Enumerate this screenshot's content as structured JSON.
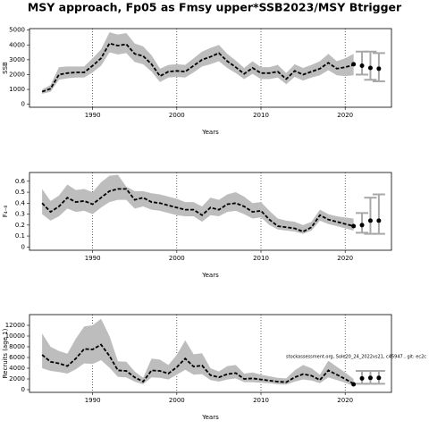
{
  "title": "MSY approach, Fp05 as Fmsy upper*SSB2023/MSY Btrigger",
  "chart_data": [
    {
      "type": "line",
      "ylabel": "SSB",
      "xlabel": "Years",
      "x": [
        1984,
        1985,
        1986,
        1987,
        1988,
        1989,
        1990,
        1991,
        1992,
        1993,
        1994,
        1995,
        1996,
        1997,
        1998,
        1999,
        2000,
        2001,
        2002,
        2003,
        2004,
        2005,
        2006,
        2007,
        2008,
        2009,
        2010,
        2011,
        2012,
        2013,
        2014,
        2015,
        2016,
        2017,
        2018,
        2019,
        2020,
        2021
      ],
      "values": [
        850,
        1050,
        2000,
        2100,
        2150,
        2150,
        2600,
        3100,
        4100,
        3950,
        4050,
        3400,
        3250,
        2700,
        1900,
        2200,
        2250,
        2200,
        2600,
        3000,
        3200,
        3450,
        2900,
        2500,
        2050,
        2450,
        2100,
        2100,
        2200,
        1700,
        2250,
        2000,
        2200,
        2400,
        2800,
        2400,
        2500,
        2650
      ],
      "upper": [
        1000,
        1300,
        2500,
        2550,
        2550,
        2550,
        3100,
        3700,
        4850,
        4700,
        4800,
        4100,
        3900,
        3300,
        2400,
        2650,
        2700,
        2650,
        3100,
        3550,
        3800,
        4000,
        3400,
        2950,
        2450,
        2900,
        2500,
        2500,
        2650,
        2100,
        2700,
        2450,
        2650,
        2900,
        3400,
        2900,
        3100,
        3400
      ],
      "lower": [
        700,
        850,
        1650,
        1750,
        1800,
        1800,
        2150,
        2600,
        3500,
        3350,
        3450,
        2850,
        2700,
        2200,
        1500,
        1800,
        1850,
        1800,
        2150,
        2550,
        2700,
        2900,
        2450,
        2100,
        1700,
        2050,
        1700,
        1700,
        1800,
        1350,
        1850,
        1600,
        1800,
        1950,
        2300,
        1950,
        1900,
        1950
      ],
      "projection": {
        "x": [
          2021,
          2022,
          2023,
          2024
        ],
        "values": [
          2700,
          2600,
          2450,
          2400
        ],
        "lower": [
          null,
          2000,
          1650,
          1550
        ],
        "upper": [
          null,
          3550,
          3550,
          3450
        ]
      },
      "xlim": [
        1982.5,
        2025.5
      ],
      "ylim": [
        -200,
        5100
      ],
      "xticks": [
        1990,
        2000,
        2010,
        2020
      ],
      "yticks": [
        0,
        1000,
        2000,
        3000,
        4000,
        5000
      ],
      "band_color": "#bdbdbd",
      "line_color": "#000000",
      "error_color": "#a8a8a8",
      "grid": true
    },
    {
      "type": "line",
      "ylabel": "F₄₋₈",
      "xlabel": "Years",
      "x": [
        1984,
        1985,
        1986,
        1987,
        1988,
        1989,
        1990,
        1991,
        1992,
        1993,
        1994,
        1995,
        1996,
        1997,
        1998,
        1999,
        2000,
        2001,
        2002,
        2003,
        2004,
        2005,
        2006,
        2007,
        2008,
        2009,
        2010,
        2011,
        2012,
        2013,
        2014,
        2015,
        2016,
        2017,
        2018,
        2019,
        2020,
        2021
      ],
      "values": [
        0.4,
        0.32,
        0.37,
        0.45,
        0.41,
        0.42,
        0.39,
        0.45,
        0.51,
        0.53,
        0.53,
        0.43,
        0.45,
        0.41,
        0.4,
        0.38,
        0.36,
        0.34,
        0.34,
        0.29,
        0.36,
        0.34,
        0.39,
        0.4,
        0.37,
        0.32,
        0.33,
        0.25,
        0.19,
        0.18,
        0.17,
        0.14,
        0.18,
        0.29,
        0.25,
        0.23,
        0.21,
        0.19
      ],
      "upper": [
        0.53,
        0.42,
        0.47,
        0.57,
        0.52,
        0.53,
        0.5,
        0.59,
        0.65,
        0.66,
        0.55,
        0.51,
        0.51,
        0.49,
        0.48,
        0.46,
        0.44,
        0.41,
        0.41,
        0.37,
        0.45,
        0.43,
        0.48,
        0.5,
        0.46,
        0.4,
        0.41,
        0.33,
        0.26,
        0.24,
        0.23,
        0.2,
        0.23,
        0.34,
        0.3,
        0.28,
        0.27,
        0.26
      ],
      "lower": [
        0.3,
        0.24,
        0.28,
        0.35,
        0.32,
        0.33,
        0.3,
        0.36,
        0.41,
        0.43,
        0.43,
        0.35,
        0.37,
        0.34,
        0.33,
        0.31,
        0.29,
        0.28,
        0.28,
        0.23,
        0.29,
        0.28,
        0.32,
        0.33,
        0.3,
        0.26,
        0.27,
        0.2,
        0.16,
        0.15,
        0.14,
        0.12,
        0.15,
        0.24,
        0.21,
        0.19,
        0.17,
        0.15
      ],
      "projection": {
        "x": [
          2021,
          2022,
          2023,
          2024
        ],
        "values": [
          0.19,
          0.2,
          0.24,
          0.24
        ],
        "lower": [
          null,
          0.13,
          0.12,
          0.12
        ],
        "upper": [
          null,
          0.31,
          0.45,
          0.48
        ]
      },
      "xlim": [
        1982.5,
        2025.5
      ],
      "ylim": [
        -0.03,
        0.68
      ],
      "xticks": [
        1990,
        2000,
        2010,
        2020
      ],
      "yticks": [
        0,
        0.1,
        0.2,
        0.3,
        0.4,
        0.5,
        0.6
      ],
      "band_color": "#bdbdbd",
      "line_color": "#000000",
      "error_color": "#a8a8a8",
      "grid": true
    },
    {
      "type": "line",
      "ylabel": "Recruits (age 1)",
      "xlabel": "Years",
      "annotation": "stockassessment.org, Sole20_24_2022vs21, c45947 , git: ec2c",
      "x": [
        1984,
        1985,
        1986,
        1987,
        1988,
        1989,
        1990,
        1991,
        1992,
        1993,
        1994,
        1995,
        1996,
        1997,
        1998,
        1999,
        2000,
        2001,
        2002,
        2003,
        2004,
        2005,
        2006,
        2007,
        2008,
        2009,
        2010,
        2011,
        2012,
        2013,
        2014,
        2015,
        2016,
        2017,
        2018,
        2019,
        2020,
        2021
      ],
      "values": [
        6500,
        5200,
        4900,
        4400,
        5800,
        7600,
        7500,
        8400,
        6300,
        3600,
        3500,
        2300,
        1500,
        3600,
        3500,
        3000,
        4200,
        5800,
        4300,
        4500,
        2700,
        2300,
        2900,
        3100,
        2000,
        2100,
        1900,
        1700,
        1500,
        1400,
        2300,
        2900,
        2600,
        1800,
        3600,
        2800,
        2000,
        1100
      ],
      "upper": [
        10500,
        8000,
        7200,
        6700,
        9500,
        11800,
        12000,
        13200,
        10000,
        5300,
        5200,
        3400,
        2200,
        5800,
        5600,
        4600,
        6500,
        9200,
        6600,
        6800,
        4000,
        3400,
        4400,
        4600,
        3000,
        3200,
        2800,
        2500,
        2200,
        2100,
        3600,
        4600,
        4000,
        2800,
        5400,
        4300,
        3200,
        2000
      ],
      "lower": [
        4000,
        3500,
        3300,
        3000,
        3800,
        4900,
        4800,
        5500,
        4100,
        2400,
        2300,
        1500,
        1000,
        2300,
        2200,
        1900,
        2800,
        3700,
        2800,
        2900,
        1800,
        1500,
        1900,
        2100,
        1400,
        1400,
        1300,
        1200,
        1000,
        950,
        1500,
        1900,
        1700,
        1200,
        2300,
        1800,
        1300,
        700
      ],
      "projection": {
        "x": [
          2021,
          2022,
          2023,
          2024
        ],
        "values": [
          1000,
          2100,
          2200,
          2200
        ],
        "lower": [
          null,
          1100,
          1100,
          1100
        ],
        "upper": [
          null,
          3500,
          3500,
          3500
        ]
      },
      "xlim": [
        1982.5,
        2025.5
      ],
      "ylim": [
        -500,
        14000
      ],
      "xticks": [
        1990,
        2000,
        2010,
        2020
      ],
      "yticks": [
        0,
        2000,
        4000,
        6000,
        8000,
        10000,
        12000
      ],
      "band_color": "#bdbdbd",
      "line_color": "#000000",
      "error_color": "#a8a8a8",
      "grid": true
    }
  ]
}
